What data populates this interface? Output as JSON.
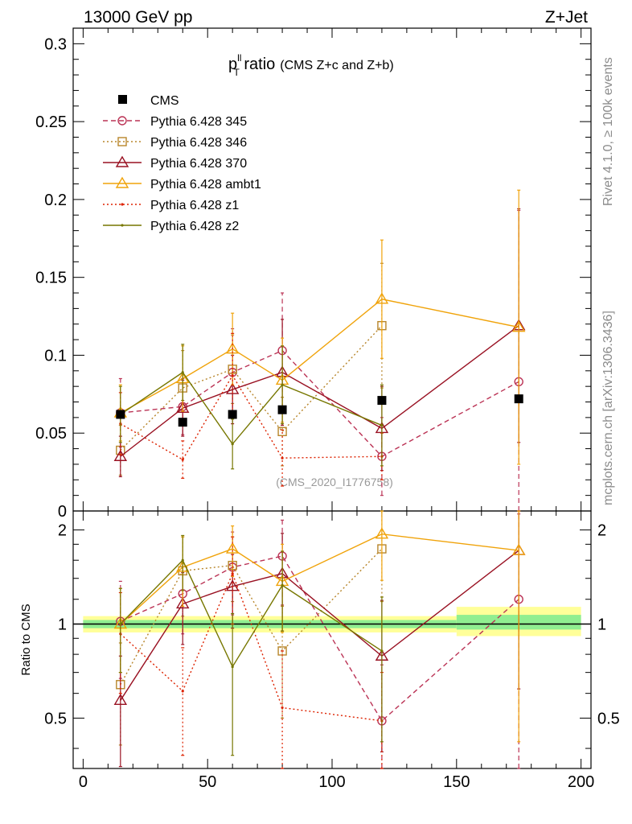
{
  "header": {
    "left": "13000 GeV pp",
    "right": "Z+Jet"
  },
  "side_labels": {
    "rivet": "Rivet 4.1.0, ≥ 100k events",
    "mcplots": "mcplots.cern.ch [arXiv:1306.3436]"
  },
  "colors": {
    "cms": "#000000",
    "p345": "#bb3355",
    "p346": "#b8862b",
    "p370": "#991122",
    "ambt1": "#f0a30a",
    "z1": "#dd2200",
    "z2": "#777700",
    "band_inner": "#90ee90",
    "band_outer": "#ffff99"
  },
  "chart_data": [
    {
      "id": "main",
      "type": "scatter",
      "title_main": "p",
      "title_sup": "ll",
      "title_sub": "T",
      "title_rest": " ratio",
      "title_small": "(CMS  Z+c and Z+b)",
      "watermark": "(CMS_2020_I1776758)",
      "ylim": [
        0,
        0.31
      ],
      "xlim": [
        -4,
        204
      ],
      "yticks": [
        {
          "v": 0,
          "label": "0"
        },
        {
          "v": 0.05,
          "label": "0.05"
        },
        {
          "v": 0.1,
          "label": "0.1"
        },
        {
          "v": 0.15,
          "label": "0.15"
        },
        {
          "v": 0.2,
          "label": "0.2"
        },
        {
          "v": 0.25,
          "label": "0.25"
        },
        {
          "v": 0.3,
          "label": "0.3"
        }
      ],
      "data": {
        "name": "CMS",
        "x": [
          15,
          40,
          60,
          80,
          120,
          175
        ],
        "y": [
          0.062,
          0.057,
          0.062,
          0.065,
          0.071,
          0.072
        ]
      },
      "series": [
        {
          "name": "Pythia 6.428 345",
          "color_key": "p345",
          "dash": "6,4",
          "marker": "circle",
          "x": [
            15,
            40,
            60,
            80,
            120,
            175
          ],
          "y": [
            0.063,
            0.067,
            0.089,
            0.103,
            0.035,
            0.083
          ],
          "err": [
            0.022,
            0.018,
            0.028,
            0.037,
            0.025,
            0.11
          ]
        },
        {
          "name": "Pythia 6.428 346",
          "color_key": "p346",
          "dash": "2,3",
          "marker": "square",
          "x": [
            15,
            40,
            60,
            80,
            120
          ],
          "y": [
            0.039,
            0.079,
            0.091,
            0.051,
            0.119
          ],
          "err": [
            0.016,
            0.024,
            0.022,
            0.022,
            0.04
          ]
        },
        {
          "name": "Pythia 6.428 370",
          "color_key": "p370",
          "dash": "",
          "marker": "triangle",
          "x": [
            15,
            40,
            60,
            80,
            120,
            175
          ],
          "y": [
            0.035,
            0.066,
            0.078,
            0.089,
            0.053,
            0.119
          ],
          "err": [
            0.013,
            0.018,
            0.022,
            0.034,
            0.027,
            0.075
          ]
        },
        {
          "name": "Pythia 6.428 ambt1",
          "color_key": "ambt1",
          "dash": "",
          "marker": "triangle",
          "x": [
            15,
            40,
            60,
            80,
            120,
            175
          ],
          "y": [
            0.063,
            0.085,
            0.104,
            0.084,
            0.136,
            0.118
          ],
          "err": [
            0.018,
            0.021,
            0.023,
            0.027,
            0.038,
            0.088
          ]
        },
        {
          "name": "Pythia 6.428 z1",
          "color_key": "z1",
          "dash": "2,3",
          "marker": "dot",
          "x": [
            15,
            40,
            60,
            80,
            120
          ],
          "y": [
            0.056,
            0.033,
            0.087,
            0.034,
            0.035
          ],
          "err": [
            0.02,
            0.012,
            0.027,
            0.018,
            0.015
          ]
        },
        {
          "name": "Pythia 6.428 z2",
          "color_key": "z2",
          "dash": "",
          "marker": "dot",
          "x": [
            15,
            40,
            60,
            80,
            120
          ],
          "y": [
            0.062,
            0.089,
            0.043,
            0.081,
            0.055
          ],
          "err": [
            0.018,
            0.018,
            0.016,
            0.025,
            0.026
          ]
        }
      ]
    },
    {
      "id": "ratio",
      "type": "scatter",
      "ylabel": "Ratio to CMS",
      "ylim": [
        0.345,
        2.3
      ],
      "xlim": [
        -4,
        204
      ],
      "yticks": [
        {
          "v": 0.5,
          "label": "0.5"
        },
        {
          "v": 1,
          "label": "1"
        },
        {
          "v": 2,
          "label": "2"
        }
      ],
      "xticks": [
        {
          "v": 0,
          "label": "0"
        },
        {
          "v": 50,
          "label": "50"
        },
        {
          "v": 100,
          "label": "100"
        },
        {
          "v": 150,
          "label": "150"
        },
        {
          "v": 200,
          "label": "200"
        }
      ],
      "bands": [
        {
          "x0": 0,
          "x1": 150,
          "inner": [
            0.97,
            1.03
          ],
          "outer": [
            0.94,
            1.06
          ]
        },
        {
          "x0": 150,
          "x1": 200,
          "inner": [
            0.96,
            1.07
          ],
          "outer": [
            0.915,
            1.135
          ]
        }
      ],
      "series": [
        {
          "name": "Pythia 6.428 345",
          "color_key": "p345",
          "dash": "6,4",
          "marker": "circle",
          "x": [
            15,
            40,
            60,
            80,
            120,
            175
          ],
          "y": [
            1.02,
            1.25,
            1.52,
            1.65,
            0.49,
            1.2
          ],
          "err": [
            0.35,
            0.32,
            0.45,
            0.5,
            0.25,
            1.05
          ]
        },
        {
          "name": "Pythia 6.428 346",
          "color_key": "p346",
          "dash": "2,3",
          "marker": "square",
          "x": [
            15,
            40,
            60,
            80,
            120
          ],
          "y": [
            0.64,
            1.48,
            1.54,
            0.82,
            1.74
          ],
          "err": [
            0.23,
            0.42,
            0.36,
            0.32,
            0.56
          ]
        },
        {
          "name": "Pythia 6.428 370",
          "color_key": "p370",
          "dash": "",
          "marker": "triangle",
          "x": [
            15,
            40,
            60,
            80,
            120,
            175
          ],
          "y": [
            0.57,
            1.16,
            1.32,
            1.45,
            0.79,
            1.72
          ],
          "err": [
            0.22,
            0.3,
            0.35,
            0.5,
            0.4,
            1.1
          ]
        },
        {
          "name": "Pythia 6.428 ambt1",
          "color_key": "ambt1",
          "dash": "",
          "marker": "triangle",
          "x": [
            15,
            40,
            60,
            80,
            120,
            175
          ],
          "y": [
            1.0,
            1.52,
            1.74,
            1.37,
            1.94,
            1.72
          ],
          "err": [
            0.3,
            0.38,
            0.32,
            0.43,
            0.56,
            1.3
          ]
        },
        {
          "name": "Pythia 6.428 z1",
          "color_key": "z1",
          "dash": "2,3",
          "marker": "dot",
          "x": [
            15,
            40,
            60,
            80,
            120
          ],
          "y": [
            0.93,
            0.61,
            1.45,
            0.54,
            0.49
          ],
          "err": [
            0.33,
            0.23,
            0.45,
            0.28,
            0.21
          ]
        },
        {
          "name": "Pythia 6.428 z2",
          "color_key": "z2",
          "dash": "",
          "marker": "dot",
          "x": [
            15,
            40,
            60,
            80,
            120
          ],
          "y": [
            1.0,
            1.6,
            0.73,
            1.33,
            0.82
          ],
          "err": [
            0.3,
            0.32,
            0.35,
            0.38,
            0.4
          ]
        }
      ]
    }
  ]
}
